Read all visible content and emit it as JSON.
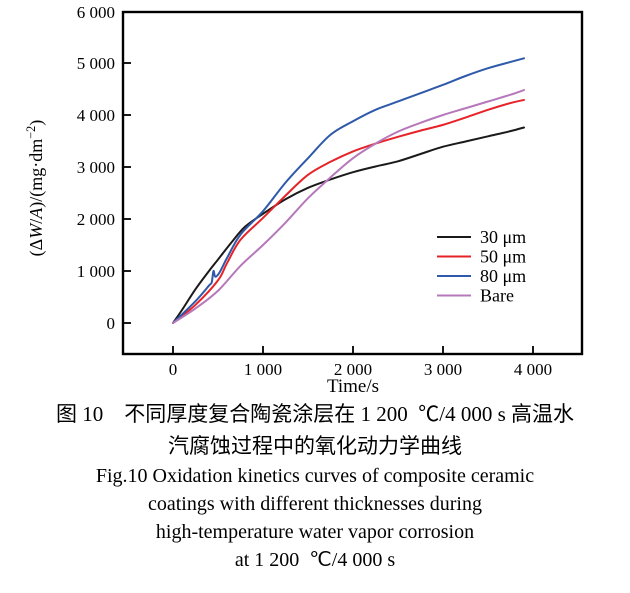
{
  "chart_data": {
    "type": "line",
    "title": "",
    "xlabel": "Time/s",
    "ylabel": "(ΔW/A)/(mg·dm⁻²)",
    "ylabel_parts": {
      "pre": "(Δ",
      "w": "W",
      "slash": "/",
      "a": "A",
      "mid": ")/(mg·dm",
      "sup": "−2",
      "close": ")"
    },
    "xlim": [
      0,
      4000
    ],
    "ylim": [
      0,
      6000
    ],
    "grid": false,
    "legend_position": "inside-right-middle",
    "x_ticks": {
      "values": [
        0,
        1000,
        2000,
        3000,
        4000
      ],
      "labels": [
        "0",
        "1 000",
        "2 000",
        "3 000",
        "4 000"
      ]
    },
    "y_ticks": {
      "values": [
        0,
        1000,
        2000,
        3000,
        4000,
        5000,
        6000
      ],
      "labels": [
        "0",
        "1 000",
        "2 000",
        "3 000",
        "4 000",
        "5 000",
        "6 000"
      ]
    },
    "series": [
      {
        "name": "30 μm",
        "color": "#1a1a1a",
        "x": [
          0,
          100,
          250,
          400,
          500,
          650,
          800,
          1000,
          1250,
          1500,
          1750,
          2000,
          2250,
          2500,
          2750,
          3000,
          3250,
          3500,
          3750,
          3900
        ],
        "y": [
          0,
          250,
          650,
          1000,
          1220,
          1550,
          1850,
          2100,
          2380,
          2600,
          2760,
          2900,
          3010,
          3110,
          3250,
          3390,
          3490,
          3590,
          3690,
          3760
        ]
      },
      {
        "name": "50 μm",
        "color": "#e62328",
        "x": [
          0,
          250,
          500,
          600,
          750,
          1000,
          1250,
          1500,
          1750,
          2000,
          2250,
          2500,
          2750,
          3000,
          3250,
          3500,
          3750,
          3900
        ],
        "y": [
          0,
          350,
          820,
          1150,
          1600,
          2020,
          2450,
          2850,
          3100,
          3300,
          3450,
          3580,
          3700,
          3810,
          3950,
          4100,
          4230,
          4290
        ]
      },
      {
        "name": "80 μm",
        "color": "#2f59a9",
        "x": [
          0,
          250,
          400,
          430,
          450,
          470,
          520,
          600,
          750,
          1000,
          1250,
          1500,
          1750,
          2000,
          2250,
          2500,
          2750,
          3000,
          3250,
          3500,
          3750,
          3900
        ],
        "y": [
          0,
          420,
          720,
          780,
          1000,
          890,
          980,
          1250,
          1700,
          2150,
          2700,
          3170,
          3620,
          3880,
          4100,
          4260,
          4420,
          4580,
          4750,
          4900,
          5020,
          5090
        ]
      },
      {
        "name": "Bare",
        "color": "#b678ba",
        "x": [
          0,
          250,
          500,
          750,
          1000,
          1250,
          1500,
          1750,
          2000,
          2250,
          2500,
          2750,
          3000,
          3250,
          3500,
          3750,
          3900
        ],
        "y": [
          0,
          280,
          620,
          1100,
          1500,
          1930,
          2400,
          2800,
          3170,
          3450,
          3680,
          3850,
          4000,
          4130,
          4260,
          4390,
          4480
        ]
      }
    ]
  },
  "caption": {
    "zh1": "图 10　不同厚度复合陶瓷涂层在 1 200  ℃/4 000 s 高温水",
    "zh2": "汽腐蚀过程中的氧化动力学曲线",
    "en1": "Fig.10 Oxidation kinetics curves of composite ceramic",
    "en2": "coatings with different thicknesses during",
    "en3": "high-temperature water vapor corrosion",
    "en4": "at 1 200  ℃/4 000 s"
  }
}
